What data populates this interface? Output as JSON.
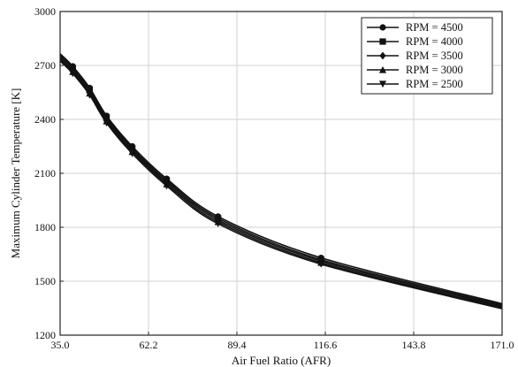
{
  "chart_data": {
    "type": "line",
    "title": "",
    "xlabel": "Air Fuel Ratio (AFR)",
    "ylabel": "Maximum Cylinder Temperature [K]",
    "xlim": [
      35.0,
      171.0
    ],
    "ylim": [
      1200,
      3000
    ],
    "xticks": [
      35.0,
      62.2,
      89.4,
      116.6,
      143.8,
      171.0
    ],
    "xtick_labels": [
      "35.0",
      "62.2",
      "89.4",
      "116.6",
      "143.8",
      "171.0"
    ],
    "yticks": [
      1200,
      1500,
      1800,
      2100,
      2400,
      2700,
      3000
    ],
    "ytick_labels": [
      "1200",
      "1500",
      "1800",
      "2100",
      "2400",
      "2700",
      "3000"
    ],
    "grid": true,
    "legend_position": "top-right",
    "x": [
      35.0,
      38.9,
      44.1,
      49.3,
      57.2,
      67.8,
      83.6,
      115.3,
      171.0
    ],
    "series": [
      {
        "name": "RPM = 4500",
        "marker": "circle",
        "values": [
          2765,
          2695,
          2575,
          2420,
          2250,
          2070,
          1860,
          1630,
          1375
        ]
      },
      {
        "name": "RPM = 4000",
        "marker": "square",
        "values": [
          2755,
          2685,
          2565,
          2410,
          2240,
          2060,
          1850,
          1620,
          1368
        ]
      },
      {
        "name": "RPM = 3500",
        "marker": "diamond",
        "values": [
          2745,
          2675,
          2555,
          2400,
          2230,
          2050,
          1840,
          1612,
          1361
        ]
      },
      {
        "name": "RPM = 3000",
        "marker": "triangle-up",
        "values": [
          2735,
          2665,
          2545,
          2390,
          2220,
          2040,
          1830,
          1603,
          1354
        ]
      },
      {
        "name": "RPM = 2500",
        "marker": "triangle-down",
        "values": [
          2725,
          2655,
          2535,
          2380,
          2210,
          2030,
          1820,
          1595,
          1347
        ]
      }
    ]
  }
}
